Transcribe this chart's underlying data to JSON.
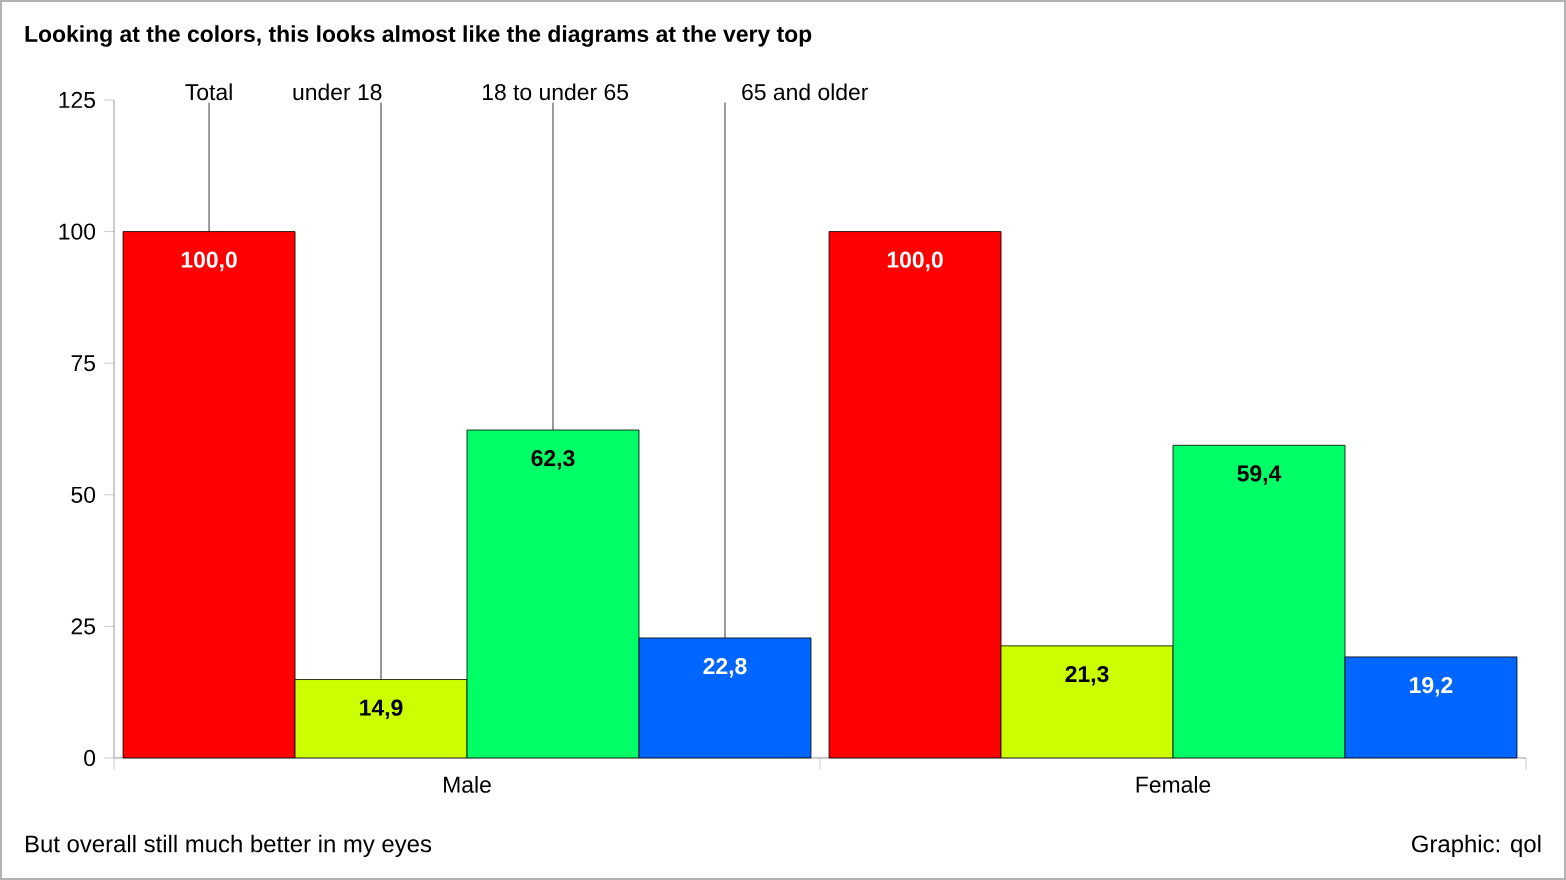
{
  "chart_data": {
    "type": "bar",
    "title": "Looking at the colors, this looks almost like the diagrams at the very top",
    "categories": [
      "Male",
      "Female"
    ],
    "series": [
      {
        "name": "Total",
        "color": "#ff0000",
        "values": [
          100.0,
          100.0
        ],
        "value_labels": [
          "100,0",
          "100,0"
        ]
      },
      {
        "name": "under 18",
        "color": "#ccff00",
        "values": [
          14.9,
          21.3
        ],
        "value_labels": [
          "14,9",
          "21,3"
        ]
      },
      {
        "name": "18 to under 65",
        "color": "#00ff66",
        "values": [
          62.3,
          59.4
        ],
        "value_labels": [
          "62,3",
          "59,4"
        ]
      },
      {
        "name": "65 and older",
        "color": "#0066ff",
        "values": [
          22.8,
          19.2
        ],
        "value_labels": [
          "22,8",
          "19,2"
        ]
      }
    ],
    "ylim": [
      0,
      125
    ],
    "yticks": [
      0,
      25,
      50,
      75,
      100,
      125
    ],
    "grid": false,
    "legend": false,
    "annotations": [
      "But overall still much better in my eyes",
      "Graphic: qol"
    ]
  }
}
